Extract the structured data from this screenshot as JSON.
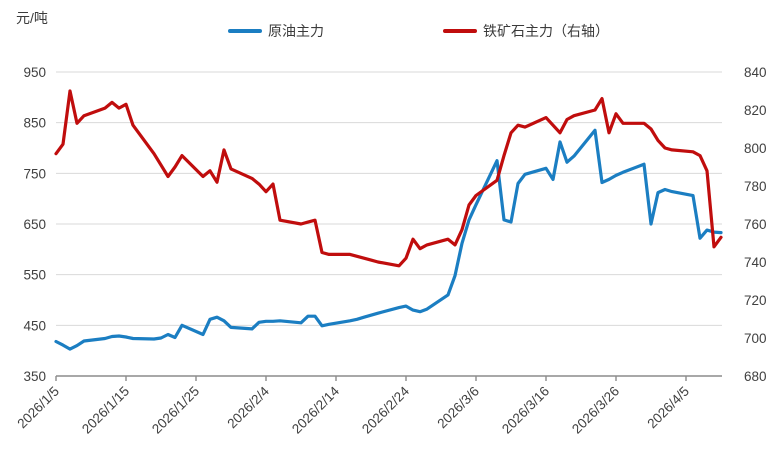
{
  "chart_data": {
    "type": "line",
    "title": "",
    "unit_label": "元/吨",
    "grid": true,
    "legend_position": "top-center",
    "legend": [
      {
        "name": "原油主力",
        "color": "#1b7ec2",
        "axis": "left"
      },
      {
        "name": "铁矿石主力（右轴）",
        "color": "#c00d0d",
        "axis": "right"
      }
    ],
    "colors": {
      "grid": "#d9d9d9",
      "axis": "#8c8c8c",
      "text": "#404040",
      "background": "#ffffff"
    },
    "left_axis": {
      "min": 350,
      "max": 950,
      "ticks": [
        950,
        850,
        750,
        650,
        550,
        450,
        350
      ]
    },
    "right_axis": {
      "min": 680,
      "max": 840,
      "ticks": [
        840,
        820,
        800,
        780,
        760,
        740,
        720,
        700,
        680
      ]
    },
    "x_axis": {
      "start_date": "2026/1/5",
      "tick_labels": [
        "2026/1/5",
        "2026/1/15",
        "2026/1/25",
        "2026/2/4",
        "2026/2/14",
        "2026/2/24",
        "2026/3/6",
        "2026/3/16",
        "2026/3/26",
        "2026/4/5"
      ]
    },
    "series": [
      {
        "name": "原油主力",
        "axis": "left",
        "color": "#1b7ec2",
        "points": [
          [
            "2026/1/5",
            418
          ],
          [
            "2026/1/6",
            411
          ],
          [
            "2026/1/7",
            403
          ],
          [
            "2026/1/8",
            410
          ],
          [
            "2026/1/9",
            419
          ],
          [
            "2026/1/12",
            424
          ],
          [
            "2026/1/13",
            428
          ],
          [
            "2026/1/14",
            429
          ],
          [
            "2026/1/15",
            427
          ],
          [
            "2026/1/16",
            424
          ],
          [
            "2026/1/19",
            423
          ],
          [
            "2026/1/20",
            425
          ],
          [
            "2026/1/21",
            432
          ],
          [
            "2026/1/22",
            426
          ],
          [
            "2026/1/23",
            450
          ],
          [
            "2026/1/26",
            432
          ],
          [
            "2026/1/27",
            462
          ],
          [
            "2026/1/28",
            466
          ],
          [
            "2026/1/29",
            459
          ],
          [
            "2026/1/30",
            446
          ],
          [
            "2026/2/2",
            443
          ],
          [
            "2026/2/3",
            456
          ],
          [
            "2026/2/4",
            458
          ],
          [
            "2026/2/5",
            458
          ],
          [
            "2026/2/6",
            459
          ],
          [
            "2026/2/9",
            455
          ],
          [
            "2026/2/10",
            468
          ],
          [
            "2026/2/11",
            468
          ],
          [
            "2026/2/12",
            449
          ],
          [
            "2026/2/13",
            452
          ],
          [
            "2026/2/16",
            459
          ],
          [
            "2026/2/17",
            462
          ],
          [
            "2026/2/18",
            466
          ],
          [
            "2026/2/19",
            470
          ],
          [
            "2026/2/20",
            474
          ],
          [
            "2026/2/23",
            485
          ],
          [
            "2026/2/24",
            488
          ],
          [
            "2026/2/25",
            480
          ],
          [
            "2026/2/26",
            477
          ],
          [
            "2026/2/27",
            482
          ],
          [
            "2026/3/2",
            510
          ],
          [
            "2026/3/3",
            548
          ],
          [
            "2026/3/4",
            612
          ],
          [
            "2026/3/5",
            658
          ],
          [
            "2026/3/6",
            688
          ],
          [
            "2026/3/9",
            775
          ],
          [
            "2026/3/10",
            658
          ],
          [
            "2026/3/11",
            654
          ],
          [
            "2026/3/12",
            730
          ],
          [
            "2026/3/13",
            748
          ],
          [
            "2026/3/16",
            760
          ],
          [
            "2026/3/17",
            738
          ],
          [
            "2026/3/18",
            812
          ],
          [
            "2026/3/19",
            772
          ],
          [
            "2026/3/20",
            784
          ],
          [
            "2026/3/23",
            835
          ],
          [
            "2026/3/24",
            732
          ],
          [
            "2026/3/25",
            738
          ],
          [
            "2026/3/26",
            746
          ],
          [
            "2026/3/27",
            752
          ],
          [
            "2026/3/30",
            768
          ],
          [
            "2026/3/31",
            650
          ],
          [
            "2026/4/1",
            712
          ],
          [
            "2026/4/2",
            718
          ],
          [
            "2026/4/3",
            714
          ],
          [
            "2026/4/6",
            706
          ],
          [
            "2026/4/7",
            622
          ],
          [
            "2026/4/8",
            638
          ],
          [
            "2026/4/9",
            634
          ],
          [
            "2026/4/10",
            633
          ]
        ]
      },
      {
        "name": "铁矿石主力（右轴）",
        "axis": "right",
        "color": "#c00d0d",
        "points": [
          [
            "2026/1/5",
            797
          ],
          [
            "2026/1/6",
            802
          ],
          [
            "2026/1/7",
            830
          ],
          [
            "2026/1/8",
            813
          ],
          [
            "2026/1/9",
            817
          ],
          [
            "2026/1/12",
            821
          ],
          [
            "2026/1/13",
            824
          ],
          [
            "2026/1/14",
            821
          ],
          [
            "2026/1/15",
            823
          ],
          [
            "2026/1/16",
            812
          ],
          [
            "2026/1/19",
            797
          ],
          [
            "2026/1/20",
            791
          ],
          [
            "2026/1/21",
            785
          ],
          [
            "2026/1/22",
            790
          ],
          [
            "2026/1/23",
            796
          ],
          [
            "2026/1/26",
            785
          ],
          [
            "2026/1/27",
            788
          ],
          [
            "2026/1/28",
            782
          ],
          [
            "2026/1/29",
            799
          ],
          [
            "2026/1/30",
            789
          ],
          [
            "2026/2/2",
            784
          ],
          [
            "2026/2/3",
            781
          ],
          [
            "2026/2/4",
            777
          ],
          [
            "2026/2/5",
            781
          ],
          [
            "2026/2/6",
            762
          ],
          [
            "2026/2/9",
            760
          ],
          [
            "2026/2/10",
            761
          ],
          [
            "2026/2/11",
            762
          ],
          [
            "2026/2/12",
            745
          ],
          [
            "2026/2/13",
            744
          ],
          [
            "2026/2/16",
            744
          ],
          [
            "2026/2/17",
            743
          ],
          [
            "2026/2/18",
            742
          ],
          [
            "2026/2/19",
            741
          ],
          [
            "2026/2/20",
            740
          ],
          [
            "2026/2/23",
            738
          ],
          [
            "2026/2/24",
            742
          ],
          [
            "2026/2/25",
            752
          ],
          [
            "2026/2/26",
            747
          ],
          [
            "2026/2/27",
            749
          ],
          [
            "2026/3/2",
            752
          ],
          [
            "2026/3/3",
            749
          ],
          [
            "2026/3/4",
            757
          ],
          [
            "2026/3/5",
            770
          ],
          [
            "2026/3/6",
            775
          ],
          [
            "2026/3/9",
            783
          ],
          [
            "2026/3/10",
            796
          ],
          [
            "2026/3/11",
            808
          ],
          [
            "2026/3/12",
            812
          ],
          [
            "2026/3/13",
            811
          ],
          [
            "2026/3/16",
            816
          ],
          [
            "2026/3/17",
            812
          ],
          [
            "2026/3/18",
            808
          ],
          [
            "2026/3/19",
            815
          ],
          [
            "2026/3/20",
            817
          ],
          [
            "2026/3/23",
            820
          ],
          [
            "2026/3/24",
            826
          ],
          [
            "2026/3/25",
            808
          ],
          [
            "2026/3/26",
            818
          ],
          [
            "2026/3/27",
            813
          ],
          [
            "2026/3/30",
            813
          ],
          [
            "2026/3/31",
            810
          ],
          [
            "2026/4/1",
            804
          ],
          [
            "2026/4/2",
            800
          ],
          [
            "2026/4/3",
            799
          ],
          [
            "2026/4/6",
            798
          ],
          [
            "2026/4/7",
            796
          ],
          [
            "2026/4/8",
            788
          ],
          [
            "2026/4/9",
            748
          ],
          [
            "2026/4/10",
            753
          ]
        ]
      }
    ]
  }
}
